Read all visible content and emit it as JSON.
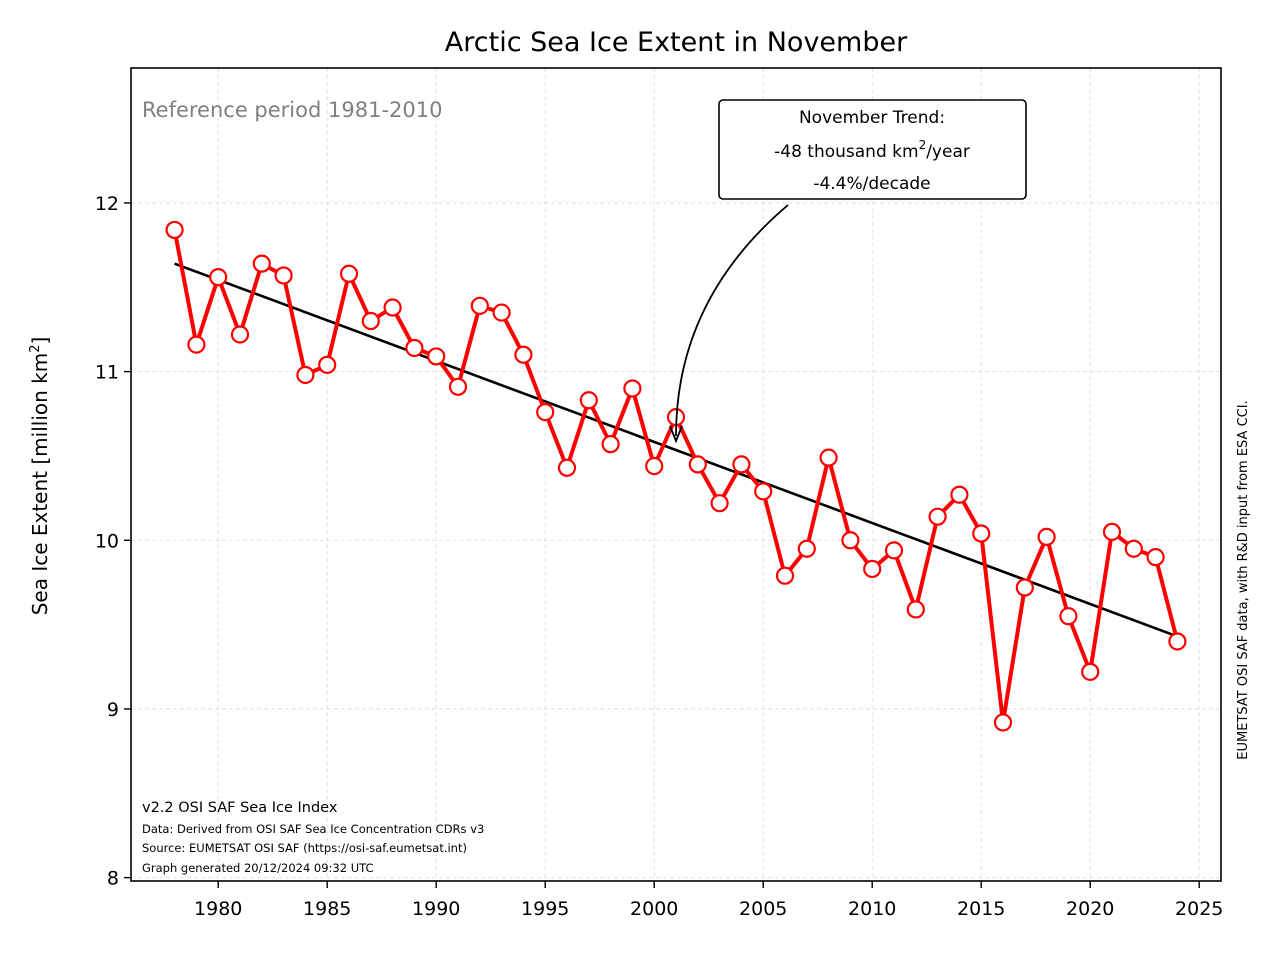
{
  "chart_data": {
    "type": "line",
    "title": "Arctic Sea Ice Extent in November",
    "ylabel": "Sea Ice Extent [million km²]",
    "ylabel_base": "Sea Ice Extent [million km",
    "ylabel_sup": "2",
    "ylabel_end": "]",
    "xlabel": "",
    "xlim": [
      1976,
      2026
    ],
    "ylim": [
      7.98,
      12.8
    ],
    "xticks": [
      1980,
      1985,
      1990,
      1995,
      2000,
      2005,
      2010,
      2015,
      2020,
      2025
    ],
    "yticks": [
      8,
      9,
      10,
      11,
      12
    ],
    "grid": true,
    "series": [
      {
        "color": "#ff0000",
        "x": [
          1978,
          1979,
          1980,
          1981,
          1982,
          1983,
          1984,
          1985,
          1986,
          1987,
          1988,
          1989,
          1990,
          1991,
          1992,
          1993,
          1994,
          1995,
          1996,
          1997,
          1998,
          1999,
          2000,
          2001,
          2002,
          2003,
          2004,
          2005,
          2006,
          2007,
          2008,
          2009,
          2010,
          2011,
          2012,
          2013,
          2014,
          2015,
          2016,
          2017,
          2018,
          2019,
          2020,
          2021,
          2022,
          2023,
          2024
        ],
        "y": [
          11.84,
          11.16,
          11.56,
          11.22,
          11.64,
          11.57,
          10.98,
          11.04,
          11.58,
          11.3,
          11.38,
          11.14,
          11.09,
          10.91,
          11.39,
          11.35,
          11.1,
          10.76,
          10.43,
          10.83,
          10.57,
          10.9,
          10.44,
          10.73,
          10.45,
          10.22,
          10.45,
          10.29,
          9.79,
          9.95,
          10.49,
          10.0,
          9.83,
          9.94,
          9.59,
          10.14,
          10.27,
          10.04,
          8.92,
          9.72,
          10.02,
          9.55,
          9.22,
          10.05,
          9.95,
          9.9,
          9.4
        ]
      }
    ],
    "trend": {
      "color": "#000000",
      "x": [
        1978,
        2024
      ],
      "y": [
        11.64,
        9.43
      ]
    },
    "annotations": {
      "reference": "Reference period 1981-2010",
      "trend_line1": "November Trend:",
      "trend_line2_pre": "-48 thousand km",
      "trend_line2_sup": "2",
      "trend_line2_post": "/year",
      "trend_line3": "-4.4%/decade",
      "trend_arrow_target": [
        2001,
        10.56
      ],
      "footnote_title": "v2.2 OSI SAF Sea Ice Index",
      "footnote_data": "Data: Derived from OSI SAF Sea Ice Concentration CDRs v3",
      "footnote_source": "Source: EUMETSAT OSI SAF (https://osi-saf.eumetsat.int)",
      "footnote_generated": "Graph generated 20/12/2024 09:32 UTC",
      "side_note": "EUMETSAT OSI SAF data, with R&D input from ESA CCI."
    }
  }
}
